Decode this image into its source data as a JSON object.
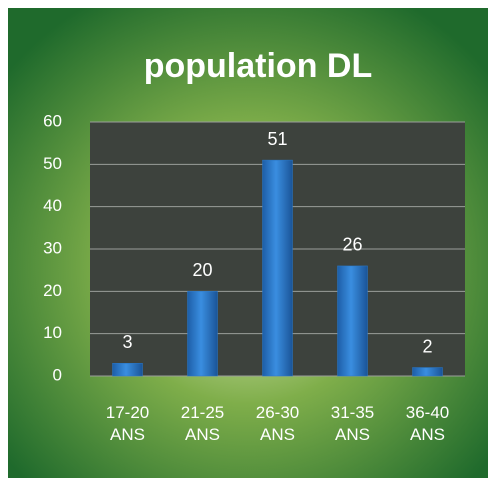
{
  "chart_data": {
    "type": "bar",
    "title": "population DL",
    "categories": [
      "17-20 ANS",
      "21-25 ANS",
      "26-30 ANS",
      "31-35 ANS",
      "36-40 ANS"
    ],
    "values": [
      3,
      20,
      51,
      26,
      2
    ],
    "color": "#2a78c8",
    "ylim": [
      0,
      60
    ],
    "yticks": [
      0,
      10,
      20,
      30,
      40,
      50,
      60
    ],
    "grid": true
  }
}
